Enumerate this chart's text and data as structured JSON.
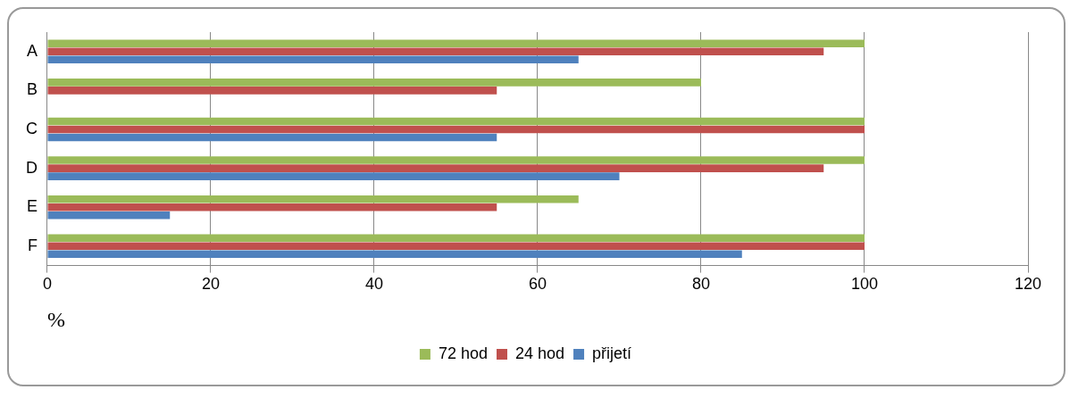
{
  "chart_data": {
    "type": "bar",
    "orientation": "horizontal",
    "xlabel": "%",
    "categories": [
      "A",
      "B",
      "C",
      "D",
      "E",
      "F"
    ],
    "series": [
      {
        "name": "72 hod",
        "color": "#9bbb59",
        "values": [
          100,
          80,
          100,
          100,
          65,
          100
        ]
      },
      {
        "name": "24 hod",
        "color": "#c0504d",
        "values": [
          95,
          55,
          100,
          95,
          55,
          100
        ]
      },
      {
        "name": "přijetí",
        "color": "#4f81bd",
        "values": [
          65,
          null,
          55,
          70,
          15,
          85
        ]
      }
    ],
    "xlim": [
      0,
      120
    ],
    "xticks": [
      0,
      20,
      40,
      60,
      80,
      100,
      120
    ],
    "grid": "x",
    "legend": "bottom"
  }
}
